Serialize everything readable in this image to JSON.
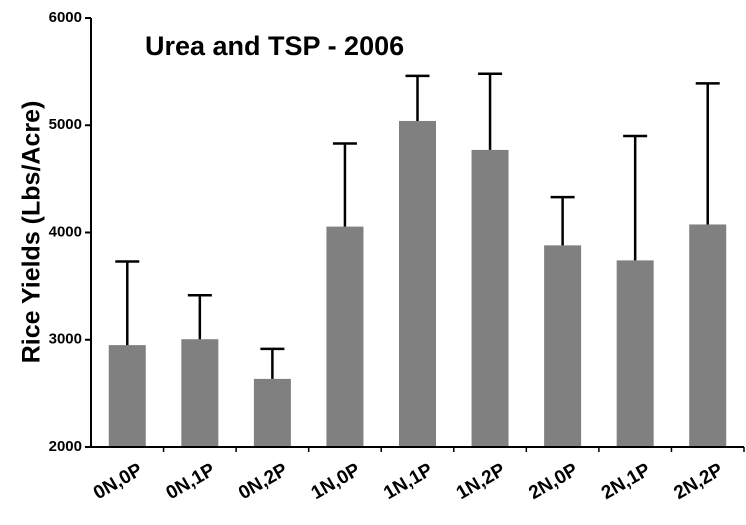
{
  "chart_data": {
    "type": "bar",
    "title": "Urea and TSP - 2006",
    "y_label": "Rice Yields (Lbs/Acre)",
    "categories": [
      "0N,0P",
      "0N,1P",
      "0N,2P",
      "1N,0P",
      "1N,1P",
      "1N,2P",
      "2N,0P",
      "2N,1P",
      "2N,2P"
    ],
    "values": [
      2950,
      3005,
      2635,
      4055,
      5040,
      4770,
      3880,
      3740,
      4075
    ],
    "errors": [
      780,
      410,
      280,
      775,
      420,
      710,
      450,
      1160,
      1315
    ],
    "color": "#808080",
    "ylim": [
      2000,
      6000
    ],
    "yticks": [
      2000,
      3000,
      4000,
      5000,
      6000
    ],
    "grid": false
  }
}
